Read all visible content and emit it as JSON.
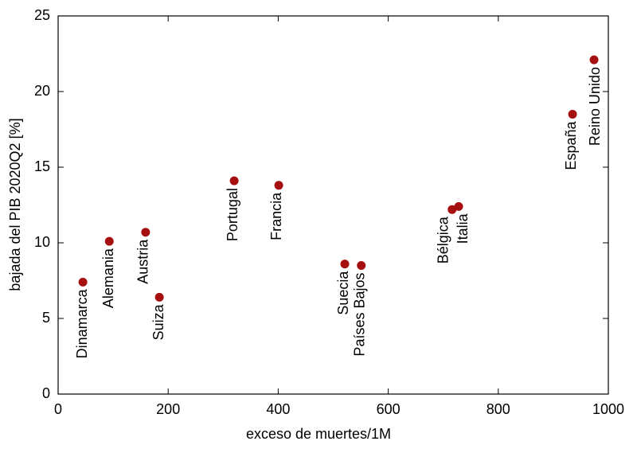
{
  "chart_data": {
    "type": "scatter",
    "xlabel": "exceso de muertes/1M",
    "ylabel": "bajada del PIB 2020Q2 [%]",
    "xlim": [
      0,
      1000
    ],
    "xticks": [
      0,
      200,
      400,
      600,
      800,
      1000
    ],
    "ylim": [
      0,
      25
    ],
    "yticks": [
      0,
      5,
      10,
      15,
      20,
      25
    ],
    "color": "#a50f0f",
    "labels": [
      "Dinamarca",
      "Alemania",
      "Austria",
      "Suiza",
      "Portugal",
      "Francia",
      "Suecia",
      "Países Bajos",
      "Bélgica",
      "Italia",
      "España",
      "Reino Unido"
    ],
    "x": [
      45,
      93,
      159,
      184,
      320,
      401,
      521,
      551,
      716,
      728,
      935,
      974
    ],
    "y": [
      7.4,
      10.1,
      10.7,
      6.4,
      14.1,
      13.8,
      8.6,
      8.5,
      12.2,
      12.4,
      18.5,
      22.1
    ]
  }
}
